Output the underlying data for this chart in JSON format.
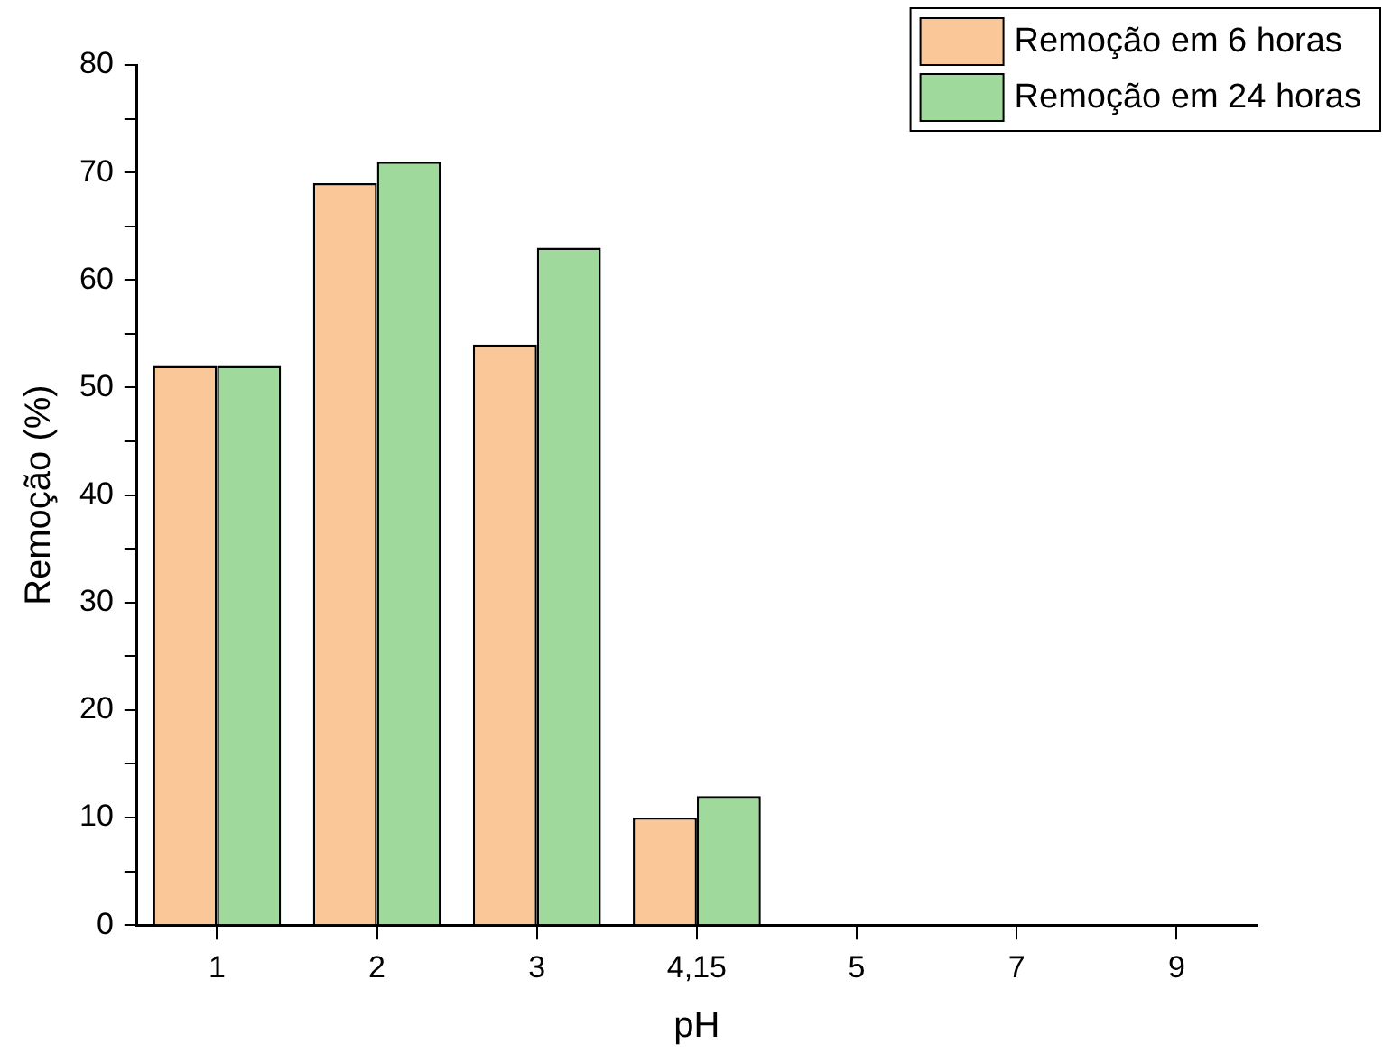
{
  "chart_data": {
    "type": "bar",
    "xlabel": "pH",
    "ylabel": "Remoção (%)",
    "categories": [
      "1",
      "2",
      "3",
      "4,15",
      "5",
      "7",
      "9"
    ],
    "series": [
      {
        "name": "Remoção em 6 horas",
        "color": "#fac898",
        "values": [
          52,
          69,
          54,
          10,
          0,
          0,
          0
        ]
      },
      {
        "name": "Remoção em 24 horas",
        "color": "#9fd99c",
        "values": [
          52,
          71,
          63,
          12,
          0,
          0,
          0
        ]
      }
    ],
    "ylim": [
      0,
      80
    ],
    "yticks": [
      0,
      {
        "value": 5,
        "label": null
      },
      10,
      {
        "value": 15,
        "label": null
      },
      20,
      {
        "value": 25,
        "label": null
      },
      30,
      {
        "value": 35,
        "label": null
      },
      40,
      {
        "value": 45,
        "label": null
      },
      50,
      {
        "value": 55,
        "label": null
      },
      60,
      {
        "value": 65,
        "label": null
      },
      70,
      {
        "value": 75,
        "label": null
      },
      80
    ],
    "grid": false,
    "legend": "top right"
  }
}
